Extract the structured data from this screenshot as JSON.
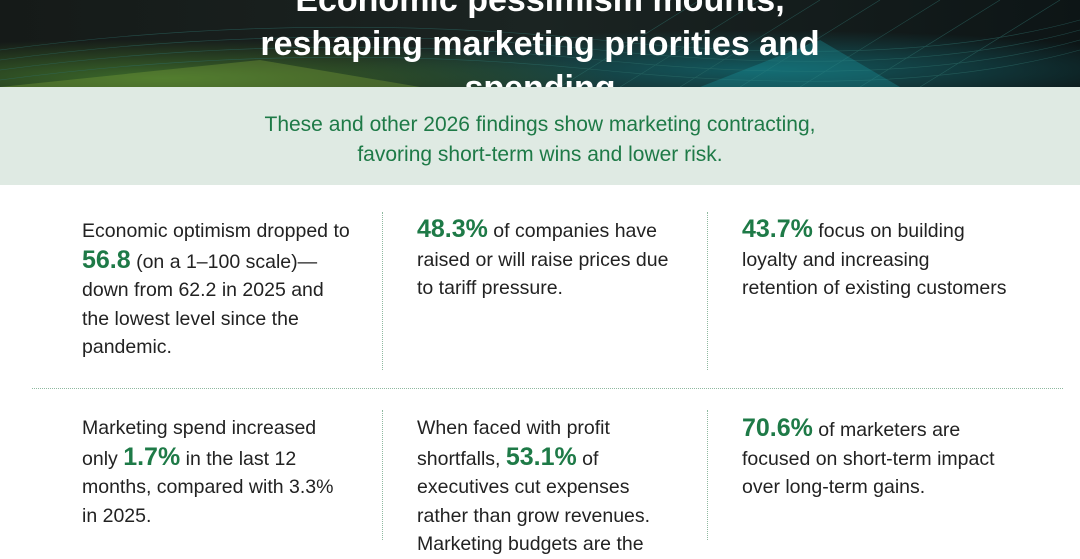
{
  "header": {
    "title": "Economic pessimism mounts, reshaping marketing priorities and spending"
  },
  "intro": "These and other 2026 findings show marketing contracting, favoring short-term wins and lower risk.",
  "findings": [
    {
      "before": "Economic optimism dropped to ",
      "highlight": "56.8",
      "after": " (on a 1–100 scale)—down from 62.2 in 2025 and the lowest level since the pandemic."
    },
    {
      "highlight": "48.3%",
      "after": " of companies have raised or will raise prices due to tariff pressure."
    },
    {
      "highlight": "43.7%",
      "after": " focus on building loyalty and increasing retention of existing customers"
    },
    {
      "before": "Marketing spend increased only ",
      "highlight": "1.7%",
      "after": " in the last 12 months, compared with 3.3% in 2025."
    },
    {
      "before": "When faced with profit shortfalls, ",
      "highlight": "53.1%",
      "after": " of executives cut expenses rather than grow revenues. Marketing budgets are the"
    },
    {
      "highlight": "70.6%",
      "after": " of marketers are focused on short-term impact over long-term gains."
    }
  ]
}
